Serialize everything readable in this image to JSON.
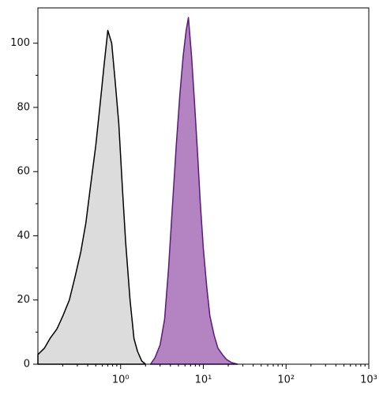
{
  "chart_data": {
    "type": "area",
    "xscale": "log",
    "xlim": [
      0.1,
      1000
    ],
    "ylim": [
      0,
      111
    ],
    "xticks": [
      {
        "value": 1,
        "label": "10⁰"
      },
      {
        "value": 10,
        "label": "10¹"
      },
      {
        "value": 100,
        "label": "10²"
      },
      {
        "value": 1000,
        "label": "10³"
      }
    ],
    "yticks": [
      0,
      20,
      40,
      60,
      80,
      100
    ],
    "series": [
      {
        "color": "#000000",
        "fill": "#dcdcdc",
        "x": [
          0.1,
          0.12,
          0.14,
          0.17,
          0.2,
          0.24,
          0.28,
          0.33,
          0.38,
          0.43,
          0.5,
          0.56,
          0.63,
          0.7,
          0.78,
          0.86,
          0.95,
          1.05,
          1.15,
          1.3,
          1.45,
          1.6,
          1.8,
          2.0
        ],
        "values": [
          3,
          5,
          8,
          11,
          15,
          20,
          27,
          35,
          44,
          55,
          68,
          80,
          93,
          104,
          100,
          88,
          75,
          55,
          38,
          20,
          8,
          4,
          1,
          0
        ]
      },
      {
        "color": "#5a1a7a",
        "fill": "#b383c2",
        "x": [
          2.3,
          2.6,
          3.0,
          3.4,
          3.8,
          4.2,
          4.7,
          5.2,
          5.7,
          6.2,
          6.6,
          7.2,
          7.8,
          8.5,
          9.2,
          10,
          11,
          12,
          13.5,
          15,
          17,
          19,
          22,
          26
        ],
        "values": [
          0,
          2,
          6,
          14,
          30,
          48,
          68,
          84,
          96,
          104,
          108,
          96,
          82,
          66,
          50,
          36,
          24,
          15,
          9,
          5,
          3,
          1.5,
          0.5,
          0
        ]
      }
    ]
  }
}
